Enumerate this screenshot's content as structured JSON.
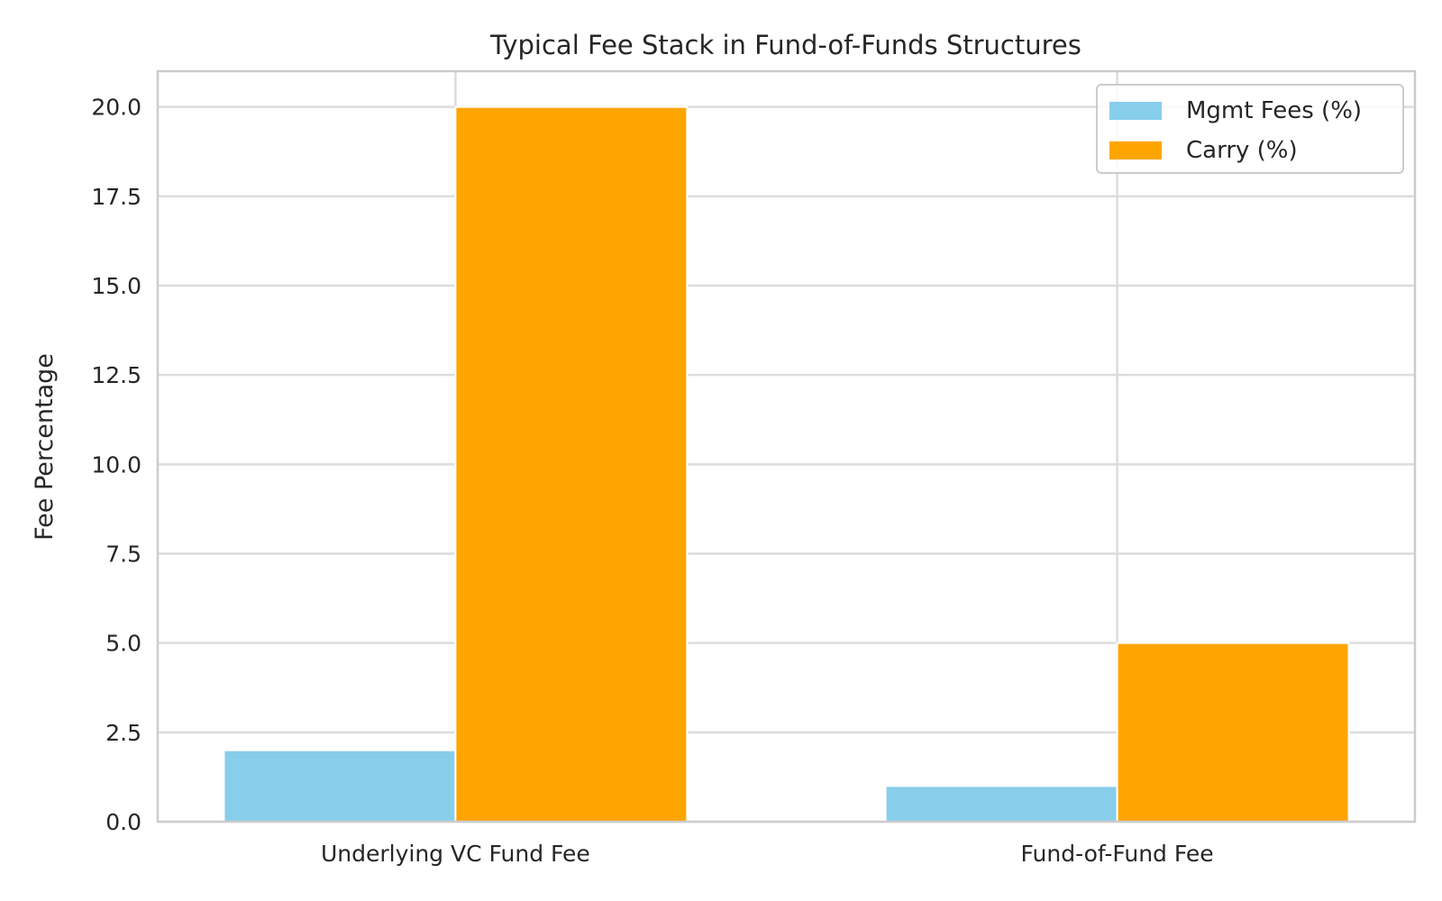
{
  "chart_data": {
    "type": "bar",
    "title": "Typical Fee Stack in Fund-of-Funds Structures",
    "xlabel": "",
    "ylabel": "Fee Percentage",
    "categories": [
      "Underlying VC Fund Fee",
      "Fund-of-Fund Fee"
    ],
    "series": [
      {
        "name": "Mgmt Fees (%)",
        "color": "#87CEEB",
        "values": [
          2.0,
          1.0
        ]
      },
      {
        "name": "Carry (%)",
        "color": "#FFA500",
        "values": [
          20.0,
          5.0
        ]
      }
    ],
    "ylim": [
      0,
      21
    ],
    "yticks": [
      0.0,
      2.5,
      5.0,
      7.5,
      10.0,
      12.5,
      15.0,
      17.5,
      20.0
    ],
    "ytick_labels": [
      "0.0",
      "2.5",
      "5.0",
      "7.5",
      "10.0",
      "12.5",
      "15.0",
      "17.5",
      "20.0"
    ],
    "grid": true,
    "legend_position": "top-right"
  }
}
